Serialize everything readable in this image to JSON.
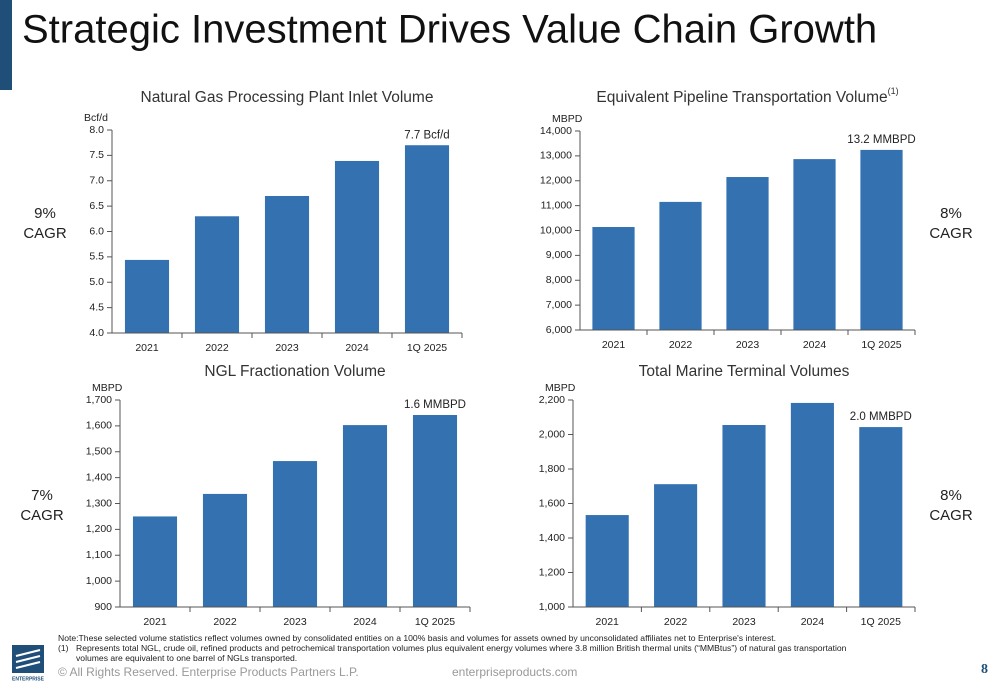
{
  "title": "Strategic Investment Drives Value Chain Growth",
  "cagr": [
    "9%",
    "CAGR",
    "8%",
    "CAGR",
    "7%",
    "CAGR",
    "8%",
    "CAGR"
  ],
  "notes": [
    "Note:These selected volume statistics reflect volumes owned by consolidated entities on a 100% basis and volumes for assets owned by unconsolidated affiliates net to Enterprise's interest.",
    "(1)",
    "Represents total NGL, crude oil, refined products and petrochemical transportation volumes plus equivalent energy volumes where 3.8 million British thermal units (“MMBtus”) of natural gas transportation",
    "volumes are equivalent to one barrel of NGLs transported."
  ],
  "footer": {
    "copyright": "© All Rights Reserved. Enterprise Products Partners L.P.",
    "website": "enterpriseproducts.com",
    "page": "8",
    "logo": "ENTERPRISE"
  },
  "chart_data": [
    {
      "type": "bar",
      "title": "Natural Gas Processing Plant Inlet Volume",
      "y_label": "Bcf/d",
      "color": "#3371b1",
      "categories": [
        "2021",
        "2022",
        "2023",
        "2024",
        "1Q 2025"
      ],
      "values": [
        5.44,
        6.3,
        6.7,
        7.39,
        7.7
      ],
      "annotation": "7.7  Bcf/d",
      "ylim": [
        4,
        8
      ],
      "yticks": [
        {
          "value": 4,
          "label": "4.0"
        },
        {
          "value": 4.5,
          "label": "4.5"
        },
        {
          "value": 5,
          "label": "5.0"
        },
        {
          "value": 5.5,
          "label": "5.5"
        },
        {
          "value": 6,
          "label": "6.0"
        },
        {
          "value": 6.5,
          "label": "6.5"
        },
        {
          "value": 7,
          "label": "7.0"
        },
        {
          "value": 7.5,
          "label": "7.5"
        },
        {
          "value": 8,
          "label": "8.0"
        }
      ]
    },
    {
      "type": "bar",
      "title": "Equivalent Pipeline Transportation Volume",
      "title_note": "(1)",
      "y_label": "MBPD",
      "color": "#3371b1",
      "categories": [
        "2021",
        "2022",
        "2023",
        "2024",
        "1Q 2025"
      ],
      "values": [
        10140,
        11150,
        12150,
        12870,
        13240
      ],
      "annotation": "13.2 MMBPD",
      "ylim": [
        6000,
        14000
      ],
      "yticks": [
        {
          "value": 6000,
          "label": "6,000"
        },
        {
          "value": 7000,
          "label": "7,000"
        },
        {
          "value": 8000,
          "label": "8,000"
        },
        {
          "value": 9000,
          "label": "9,000"
        },
        {
          "value": 10000,
          "label": "10,000"
        },
        {
          "value": 11000,
          "label": "11,000"
        },
        {
          "value": 12000,
          "label": "12,000"
        },
        {
          "value": 13000,
          "label": "13,000"
        },
        {
          "value": 14000,
          "label": "14,000"
        }
      ]
    },
    {
      "type": "bar",
      "title": "NGL Fractionation Volume",
      "y_label": "MBPD",
      "color": "#3371b1",
      "categories": [
        "2021",
        "2022",
        "2023",
        "2024",
        "1Q 2025"
      ],
      "values": [
        1250,
        1337,
        1464,
        1603,
        1642
      ],
      "annotation": "1.6 MMBPD",
      "ylim": [
        900,
        1700
      ],
      "yticks": [
        900,
        {
          "value": 1000,
          "label": "1,000"
        },
        {
          "value": 1100,
          "label": "1,100"
        },
        {
          "value": 1200,
          "label": "1,200"
        },
        {
          "value": 1300,
          "label": "1,300"
        },
        {
          "value": 1400,
          "label": "1,400"
        },
        {
          "value": 1500,
          "label": "1,500"
        },
        {
          "value": 1600,
          "label": "1,600"
        },
        {
          "value": 1700,
          "label": "1,700"
        }
      ]
    },
    {
      "type": "bar",
      "title": "Total Marine Terminal Volumes",
      "y_label": "MBPD",
      "color": "#3371b1",
      "categories": [
        "2021",
        "2022",
        "2023",
        "2024",
        "1Q 2025"
      ],
      "values": [
        1533,
        1712,
        2055,
        2183,
        2043
      ],
      "annotation": "2.0 MMBPD",
      "ylim": [
        1000,
        2200
      ],
      "yticks": [
        {
          "value": 1000,
          "label": "1,000"
        },
        {
          "value": 1200,
          "label": "1,200"
        },
        {
          "value": 1400,
          "label": "1,400"
        },
        {
          "value": 1600,
          "label": "1,600"
        },
        {
          "value": 1800,
          "label": "1,800"
        },
        {
          "value": 2000,
          "label": "2,000"
        },
        {
          "value": 2200,
          "label": "2,200"
        }
      ]
    }
  ]
}
